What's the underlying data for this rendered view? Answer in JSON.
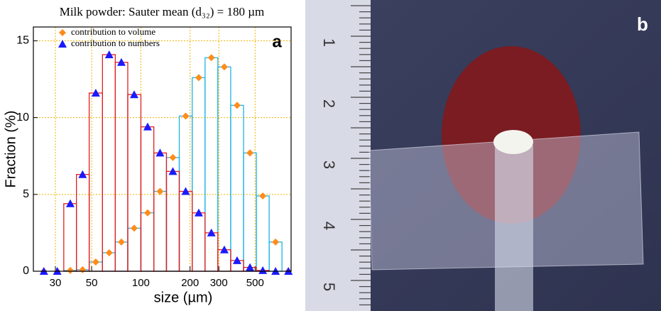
{
  "chart_data": {
    "type": "step",
    "title": "Milk powder: Sauter mean (d₃₂) = 180 µm",
    "panel_label": "a",
    "x_label": "size (µm)",
    "y_label": "Fraction (%)",
    "x": [
      25.5,
      30.8,
      37,
      44,
      53,
      64,
      76,
      91,
      110,
      131,
      157,
      188,
      226,
      270,
      324,
      388,
      465,
      557,
      667,
      799
    ],
    "series": [
      {
        "name": "contribution to volume",
        "color": "#ff8c1a",
        "line_color": "#1eb4e6",
        "marker": "diamond",
        "values": [
          0,
          0,
          0.05,
          0.1,
          0.6,
          1.2,
          1.9,
          2.8,
          3.8,
          5.2,
          7.4,
          10.1,
          12.6,
          13.9,
          13.3,
          10.8,
          7.7,
          4.9,
          1.9,
          0
        ]
      },
      {
        "name": "contribution to numbers",
        "color": "#1a1aff",
        "line_color": "#e02020",
        "marker": "triangle",
        "values": [
          0,
          0,
          4.4,
          6.3,
          11.6,
          14.1,
          13.6,
          11.5,
          9.4,
          7.7,
          6.5,
          5.2,
          3.8,
          2.5,
          1.4,
          0.7,
          0.25,
          0.05,
          0,
          0
        ]
      }
    ],
    "xlim": [
      22,
      830
    ],
    "ylim": [
      0,
      15.9
    ],
    "log_x": true,
    "xticks": [
      30,
      50,
      100,
      200,
      300,
      500
    ],
    "yticks": [
      0,
      5,
      10,
      15
    ],
    "grid": true,
    "grid_color": "#f0b400"
  },
  "photo": {
    "label": "b",
    "ruler_labels": [
      "1",
      "2",
      "3",
      "4",
      "5"
    ]
  }
}
